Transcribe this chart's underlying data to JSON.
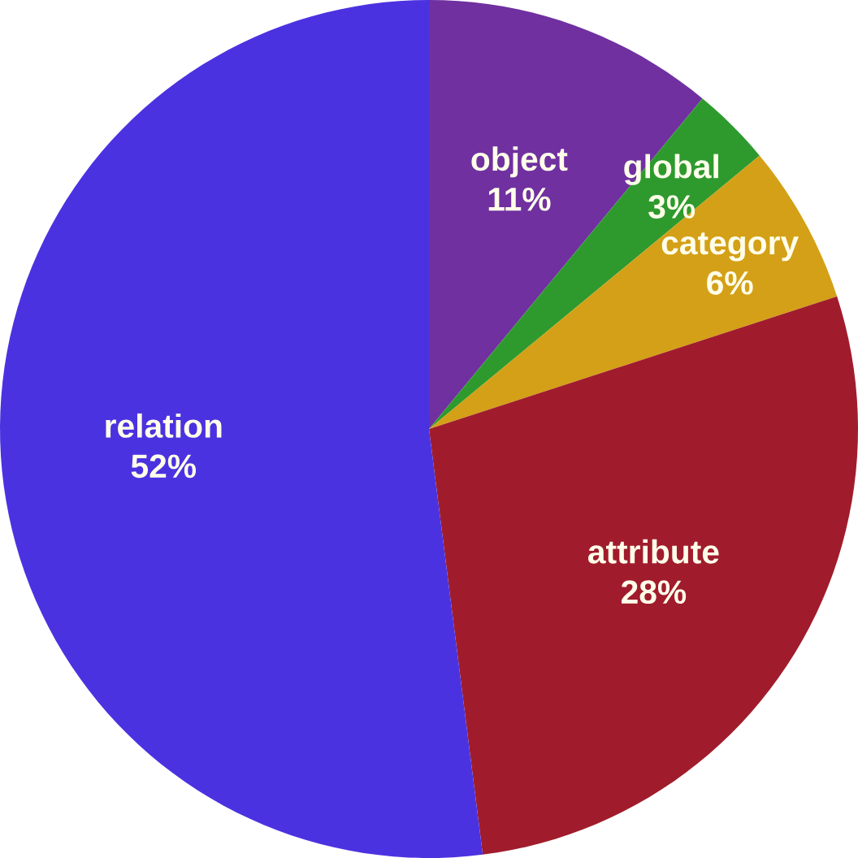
{
  "chart_data": {
    "type": "pie",
    "categories": [
      "object",
      "global",
      "category",
      "attribute",
      "relation"
    ],
    "values": [
      11,
      3,
      6,
      28,
      52
    ],
    "value_labels": [
      "11%",
      "3%",
      "6%",
      "28%",
      "52%"
    ],
    "colors": [
      "#7030a0",
      "#2e9a2e",
      "#d4a017",
      "#a01c2c",
      "#4b32e0"
    ]
  }
}
